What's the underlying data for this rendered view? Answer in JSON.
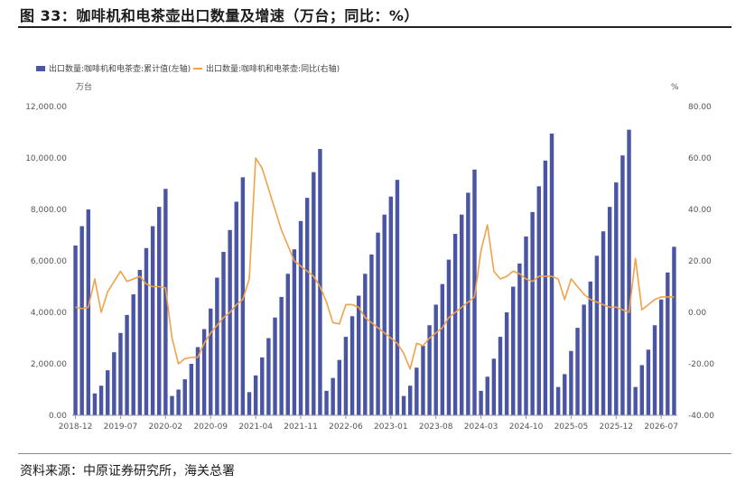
{
  "header": {
    "title": "图 33：咖啡机和电茶壶出口数量及增速（万台；同比：%）"
  },
  "footer": {
    "source": "资料来源：中原证券研究所，海关总署"
  },
  "chart_data": {
    "type": "bar",
    "left_unit": "万台",
    "right_unit": "%",
    "legend_position": "top-left",
    "ylim_left": [
      0,
      12000
    ],
    "ylim_right": [
      -40,
      80
    ],
    "left_ticks": [
      "0.00",
      "2,000.00",
      "4,000.00",
      "6,000.00",
      "8,000.00",
      "10,000.00",
      "12,000.00"
    ],
    "right_ticks": [
      "-40.00",
      "-20.00",
      "0.00",
      "20.00",
      "40.00",
      "60.00",
      "80.00"
    ],
    "x_tick_labels": [
      "2018-12",
      "2019-07",
      "2020-02",
      "2020-09",
      "2021-04",
      "2021-11",
      "2022-06",
      "2023-01",
      "2023-08",
      "2024-03",
      "2024-10",
      "2025-05",
      "2025-12",
      "2026-07"
    ],
    "series": [
      {
        "name": "出口数量:咖啡机和电茶壶:累计值(左轴)",
        "kind": "bar",
        "axis": "left",
        "color": "#4a56a3",
        "values": [
          6600,
          7350,
          8000,
          850,
          1150,
          1750,
          2450,
          3200,
          3900,
          4700,
          5650,
          6500,
          7350,
          8100,
          8800,
          750,
          1000,
          1400,
          2000,
          2650,
          3350,
          4150,
          5350,
          6350,
          7200,
          8300,
          9250,
          900,
          1550,
          2250,
          3000,
          3800,
          4600,
          5500,
          6450,
          7550,
          8450,
          9450,
          10350,
          950,
          1450,
          2150,
          3050,
          3850,
          4650,
          5500,
          6250,
          7100,
          7800,
          8500,
          9150,
          750,
          1150,
          1850,
          2700,
          3500,
          4300,
          5100,
          6050,
          7050,
          7800,
          8650,
          9550,
          950,
          1500,
          2200,
          3050,
          4000,
          5000,
          5900,
          6950,
          7900,
          8900,
          9900,
          10950,
          1100,
          1600,
          2500,
          3400,
          4300,
          5200,
          6200,
          7150,
          8100,
          9050,
          10100,
          11100,
          1100,
          1950,
          2550,
          3500,
          4500,
          5550,
          6550
        ]
      },
      {
        "name": "出口数量:咖啡机和电茶壶:同比(右轴)",
        "kind": "line",
        "axis": "right",
        "color": "#f0a24a",
        "values": [
          2,
          1.5,
          2,
          13,
          0,
          8,
          12,
          16,
          12,
          13,
          14,
          11,
          10,
          10,
          9.5,
          -10,
          -20,
          -18,
          -17.5,
          -17.5,
          -12,
          -8,
          -5,
          -2,
          0,
          3,
          5,
          13,
          60,
          56,
          48,
          40,
          32,
          26,
          20,
          18,
          16,
          14,
          10,
          4,
          -4,
          -4.5,
          3,
          3,
          2,
          -2,
          -4,
          -6,
          -8,
          -10,
          -12,
          -16,
          -22,
          -12,
          -13,
          -10,
          -8,
          -6,
          -2,
          0,
          2,
          4,
          6,
          24,
          34,
          16,
          13,
          14,
          16,
          15,
          13,
          12,
          14,
          14,
          14,
          13,
          5,
          13,
          10,
          7,
          5,
          4,
          3,
          2,
          2,
          1,
          0,
          21,
          1,
          3,
          5,
          6,
          6,
          6
        ]
      }
    ]
  }
}
